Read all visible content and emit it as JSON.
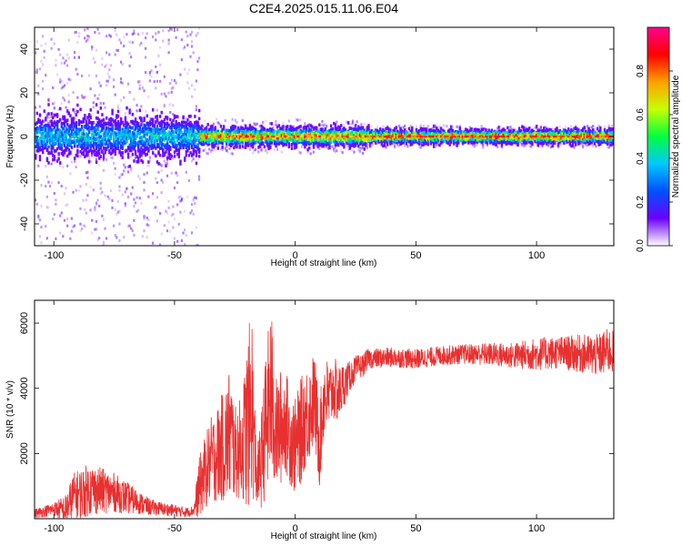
{
  "figure": {
    "title": "C2E4.2025.015.11.06.E04"
  },
  "chart_data": [
    {
      "type": "heatmap",
      "xlabel": "Height of straight line (km)",
      "ylabel": "Frequency (Hz)",
      "xlim": [
        -108,
        132
      ],
      "ylim": [
        -50,
        50
      ],
      "xticks": [
        -100,
        -50,
        0,
        50,
        100
      ],
      "yticks": [
        -40,
        -20,
        0,
        20,
        40
      ],
      "grid": false,
      "colorbar": {
        "label": "Normalized spectral amplitude",
        "range": [
          0,
          1
        ],
        "ticks": [
          "0.0",
          "0.2",
          "0.4",
          "0.6",
          "0.8"
        ],
        "colormap": [
          "#ffffff",
          "#6a00ff",
          "#0050ff",
          "#00c8ff",
          "#00ff40",
          "#c8ff00",
          "#ffa000",
          "#ff0000",
          "#ff0090"
        ]
      },
      "band": [
        {
          "x_range": [
            -108,
            -40
          ],
          "center_hz": 0,
          "core_halfwidth_hz": 9,
          "peak_amplitude": 0.45,
          "scatter_halfwidth_hz": 50
        },
        {
          "x_range": [
            -40,
            30
          ],
          "center_hz": 0,
          "core_halfwidth_hz": 4,
          "peak_amplitude": 0.9,
          "scatter_halfwidth_hz": 8
        },
        {
          "x_range": [
            30,
            132
          ],
          "center_hz": 0,
          "core_halfwidth_hz": 3,
          "peak_amplitude": 0.95,
          "scatter_halfwidth_hz": 5
        }
      ]
    },
    {
      "type": "line",
      "xlabel": "Height of straight line (km)",
      "ylabel": "SNR (10 * v/v)",
      "xlim": [
        -108,
        132
      ],
      "ylim": [
        0,
        6700
      ],
      "xticks": [
        -100,
        -50,
        0,
        50,
        100
      ],
      "yticks": [
        2000,
        4000,
        6000
      ],
      "grid": false,
      "series": [
        {
          "color": "#e83030",
          "x": [
            -108,
            -100,
            -95,
            -92,
            -88,
            -85,
            -80,
            -75,
            -70,
            -65,
            -60,
            -55,
            -50,
            -45,
            -42,
            -40,
            -38,
            -35,
            -32,
            -29,
            -27,
            -25,
            -22,
            -20,
            -18,
            -16,
            -14,
            -12,
            -10,
            -8,
            -6,
            -4,
            -2,
            0,
            2,
            4,
            6,
            8,
            10,
            12,
            14,
            16,
            18,
            20,
            22,
            25,
            28,
            30,
            40,
            50,
            60,
            70,
            80,
            90,
            100,
            110,
            120,
            125,
            130,
            132
          ],
          "y": [
            150,
            300,
            250,
            700,
            800,
            900,
            850,
            800,
            650,
            500,
            350,
            300,
            250,
            200,
            250,
            900,
            1300,
            1800,
            2000,
            2300,
            2600,
            2000,
            2200,
            2800,
            3600,
            1200,
            1800,
            3000,
            3800,
            2600,
            2800,
            3000,
            2500,
            2200,
            2600,
            3100,
            3300,
            3700,
            2200,
            3800,
            3700,
            4000,
            3800,
            4100,
            4300,
            4600,
            4700,
            4900,
            4950,
            4900,
            5000,
            5050,
            5050,
            5000,
            5050,
            5100,
            5050,
            5000,
            5150,
            5100
          ],
          "noise_amplitude": [
            150,
            200,
            500,
            700,
            800,
            800,
            700,
            600,
            500,
            350,
            250,
            200,
            180,
            150,
            150,
            900,
            1100,
            1300,
            1500,
            1800,
            2200,
            1400,
            1600,
            2600,
            3000,
            800,
            1500,
            2300,
            2800,
            1700,
            1800,
            1600,
            1500,
            1500,
            1600,
            1600,
            1500,
            1500,
            1300,
            1300,
            1100,
            1000,
            900,
            700,
            500,
            400,
            350,
            300,
            300,
            300,
            300,
            300,
            350,
            400,
            500,
            500,
            600,
            650,
            700,
            650
          ]
        }
      ]
    }
  ]
}
